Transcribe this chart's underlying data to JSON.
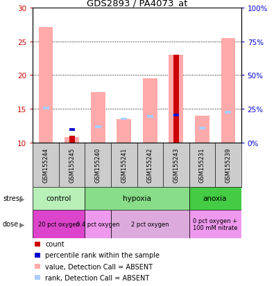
{
  "title": "GDS2893 / PA4073_at",
  "samples": [
    "GSM155244",
    "GSM155245",
    "GSM155240",
    "GSM155241",
    "GSM155242",
    "GSM155243",
    "GSM155231",
    "GSM155239"
  ],
  "ylim": [
    10,
    30
  ],
  "ylim_right": [
    0,
    100
  ],
  "yticks_left": [
    10,
    15,
    20,
    25,
    30
  ],
  "yticks_right": [
    0,
    25,
    50,
    75,
    100
  ],
  "pink_bar_tops": [
    27.2,
    10.8,
    17.5,
    13.5,
    19.5,
    23.0,
    14.0,
    25.5
  ],
  "pink_bar_base": 10,
  "red_bar_tops": [
    10,
    11.0,
    10,
    10,
    10,
    23.0,
    10,
    10
  ],
  "red_bar_base": 10,
  "blue_square_y": [
    null,
    11.9,
    null,
    null,
    null,
    14.1,
    null,
    null
  ],
  "light_blue_y": [
    15.1,
    null,
    12.3,
    13.5,
    13.9,
    14.1,
    12.1,
    14.5
  ],
  "stress_groups": [
    {
      "label": "control",
      "start": 0,
      "end": 2,
      "color": "#b8f0b8"
    },
    {
      "label": "hypoxia",
      "start": 2,
      "end": 6,
      "color": "#88dd88"
    },
    {
      "label": "anoxia",
      "start": 6,
      "end": 8,
      "color": "#44cc44"
    }
  ],
  "dose_groups": [
    {
      "label": "20 pct oxygen",
      "start": 0,
      "end": 2,
      "color": "#dd44cc"
    },
    {
      "label": "0.4 pct oxygen",
      "start": 2,
      "end": 3,
      "color": "#ee99ee"
    },
    {
      "label": "2 pct oxygen",
      "start": 3,
      "end": 6,
      "color": "#ddaadd"
    },
    {
      "label": "0 pct oxygen +\n100 mM nitrate",
      "start": 6,
      "end": 8,
      "color": "#ee99ee"
    }
  ],
  "legend_items": [
    {
      "color": "#cc0000",
      "label": "count"
    },
    {
      "color": "#0000cc",
      "label": "percentile rank within the sample"
    },
    {
      "color": "#ffaaaa",
      "label": "value, Detection Call = ABSENT"
    },
    {
      "color": "#aaccff",
      "label": "rank, Detection Call = ABSENT"
    }
  ],
  "bar_width": 0.55,
  "pink_color": "#ffaaaa",
  "red_color": "#cc0000",
  "blue_color": "#1111cc",
  "light_blue_color": "#aaccff",
  "axis_label_color_left": "#cc0000",
  "axis_label_color_right": "#0000cc",
  "background_color": "#ffffff",
  "sample_bg_color": "#cccccc",
  "n_samples": 8
}
